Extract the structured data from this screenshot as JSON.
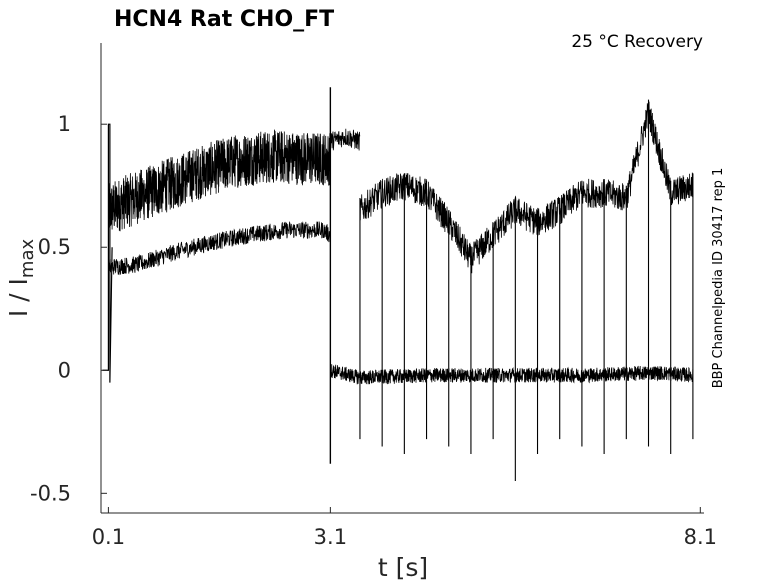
{
  "chart_data": {
    "type": "line",
    "title": "HCN4  Rat  CHO_FT",
    "annotation": "25 °C  Recovery",
    "side_text": "BBP Channelpedia ID 30417 rep 1",
    "xlabel": "t [s]",
    "ylabel_main": "I / I",
    "ylabel_sub": "max",
    "xlim": [
      0.0,
      8.15
    ],
    "ylim": [
      -0.58,
      1.33
    ],
    "x_ticks": [
      0.1,
      3.1,
      8.1
    ],
    "x_tick_labels": [
      "0.1",
      "3.1",
      "8.1"
    ],
    "y_ticks": [
      -0.5,
      0,
      0.5,
      1
    ],
    "y_tick_labels": [
      "-0.5",
      "0",
      "0.5",
      "1"
    ],
    "grid": false,
    "line_color": "#000000",
    "recovery_times": [
      3.5,
      3.8,
      4.1,
      4.4,
      4.7,
      5.0,
      5.3,
      5.6,
      5.9,
      6.2,
      6.5,
      6.8,
      7.1,
      7.4,
      7.7,
      8.0
    ],
    "series": [
      {
        "x": [
          0.1,
          0.3,
          0.8,
          1.3,
          1.8,
          2.3,
          2.8,
          3.1
        ],
        "y": [
          0.65,
          0.68,
          0.74,
          0.8,
          0.85,
          0.87,
          0.86,
          0.86
        ]
      },
      {
        "x": [
          0.1,
          0.5,
          1.0,
          1.5,
          2.0,
          2.5,
          3.0,
          3.1
        ],
        "y": [
          0.42,
          0.43,
          0.48,
          0.52,
          0.55,
          0.57,
          0.57,
          0.55
        ]
      },
      {
        "x": [
          3.1,
          3.3,
          3.5
        ],
        "y": [
          0.93,
          0.95,
          0.93
        ]
      },
      {
        "x": [
          3.5,
          3.8,
          4.1,
          4.4,
          4.7,
          5.0,
          5.3,
          5.6,
          5.9,
          6.2,
          6.5,
          6.8,
          7.1,
          7.4,
          7.7,
          8.0
        ],
        "y": [
          0.65,
          0.72,
          0.75,
          0.72,
          0.6,
          0.45,
          0.55,
          0.65,
          0.6,
          0.65,
          0.72,
          0.72,
          0.7,
          1.05,
          0.72,
          0.75
        ]
      },
      {
        "x": [
          3.1,
          3.5,
          4.5,
          5.5,
          6.5,
          7.5,
          8.0
        ],
        "y": [
          0.0,
          -0.03,
          -0.02,
          -0.02,
          -0.02,
          -0.01,
          -0.02
        ]
      }
    ]
  }
}
